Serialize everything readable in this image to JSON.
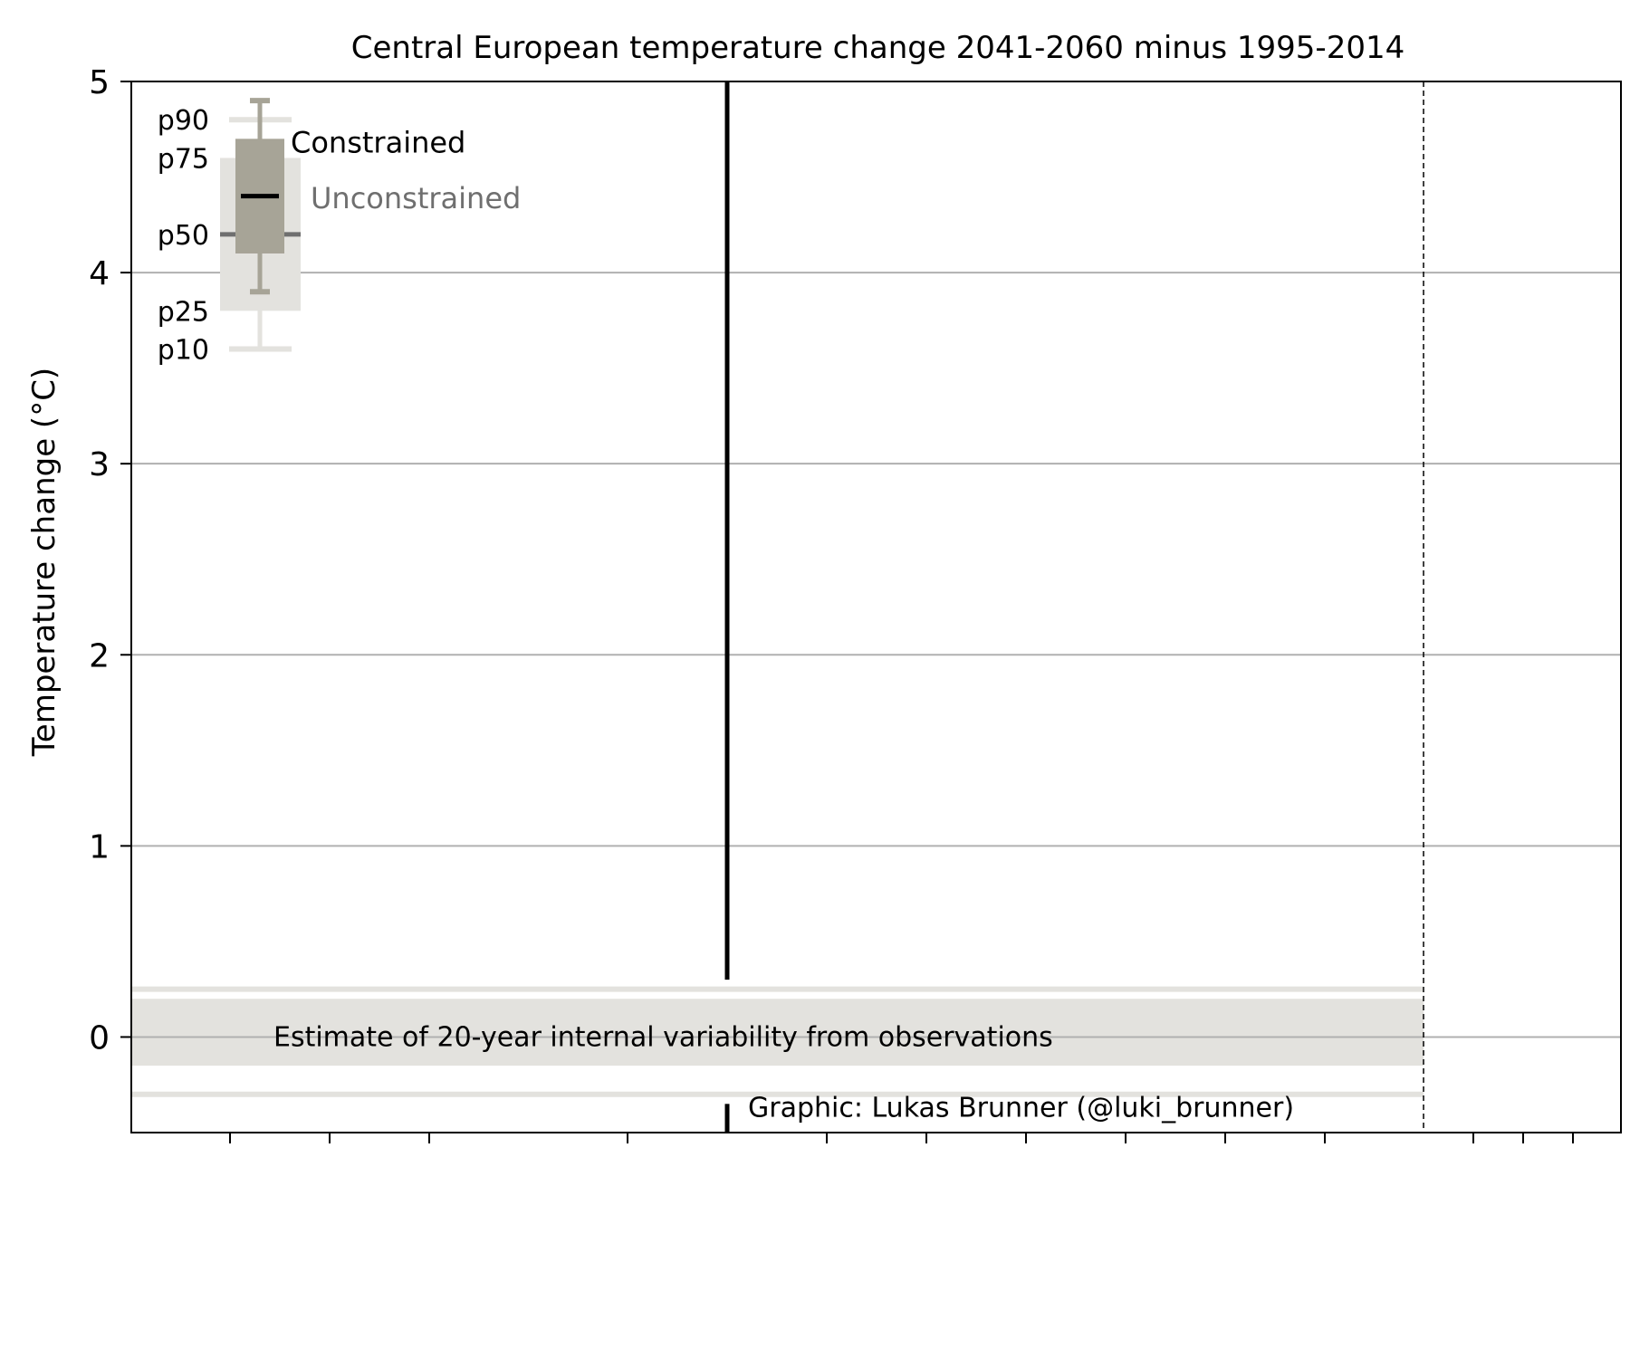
{
  "chart_data": {
    "type": "box",
    "title": "Central European temperature change 2041-2060 minus 1995-2014",
    "ylabel": "Temperature change (°C)",
    "xlabel": "",
    "ylim": [
      -0.5,
      5
    ],
    "yticks": [
      0,
      1,
      2,
      3,
      4,
      5
    ],
    "grid": "y",
    "series": [
      {
        "name": "Unconstrained",
        "color": "#e3e2de",
        "label_color": "#6f6f6f",
        "p10": 3.6,
        "p25": 3.8,
        "p50": 4.2,
        "p75": 4.6,
        "p90": 4.8
      },
      {
        "name": "Constrained",
        "color": "#a7a497",
        "label_color": "#000000",
        "p10": 3.9,
        "p25": 4.1,
        "p50": 4.4,
        "p75": 4.7,
        "p90": 4.9
      }
    ],
    "percentile_labels": [
      "p90",
      "p75",
      "p50",
      "p25",
      "p10"
    ],
    "variability_band": {
      "label": "Estimate of 20-year internal variability from observations",
      "inner": [
        -0.15,
        0.2
      ],
      "outer": [
        -0.3,
        0.25
      ],
      "color": "#e3e2de"
    },
    "credit": "Graphic: Lukas Brunner (@luki_brunner)"
  }
}
